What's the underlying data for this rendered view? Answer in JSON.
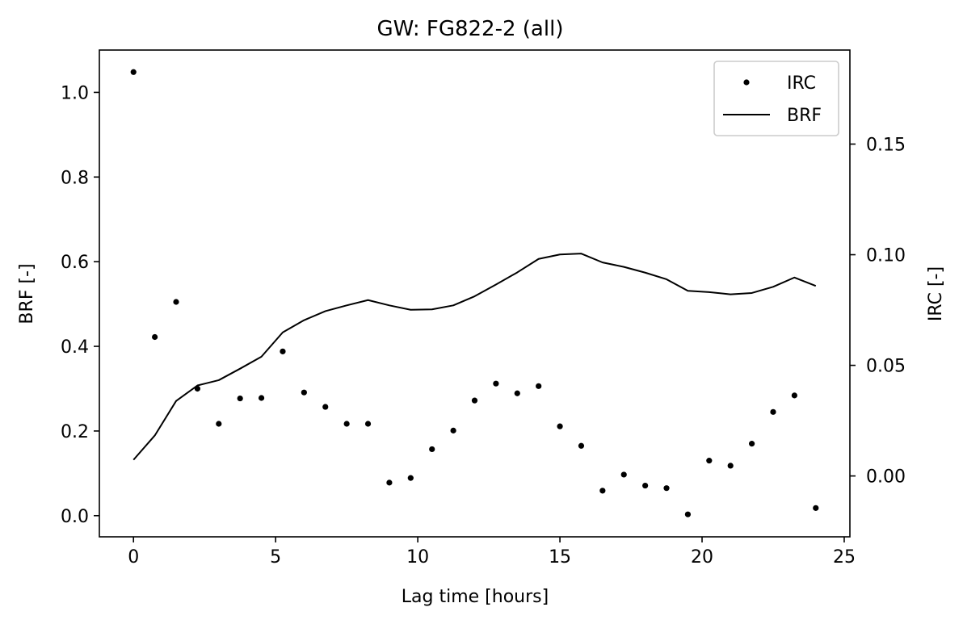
{
  "chart_data": {
    "type": "scatter",
    "title": "GW: FG822-2 (all)",
    "xlabel": "Lag time [hours]",
    "ylabel": "BRF [-]",
    "y2label": "IRC [-]",
    "xlim": [
      -1.2,
      25.2
    ],
    "ylim": [
      -0.05,
      1.1
    ],
    "y2lim": [
      -0.0275,
      0.1925
    ],
    "xticks": [
      0,
      5,
      10,
      15,
      20,
      25
    ],
    "yticks": [
      0.0,
      0.2,
      0.4,
      0.6,
      0.8,
      1.0
    ],
    "y2ticks": [
      0.0,
      0.05,
      0.1,
      0.15
    ],
    "xtick_labels": [
      "0",
      "5",
      "10",
      "15",
      "20",
      "25"
    ],
    "ytick_labels": [
      "0.0",
      "0.2",
      "0.4",
      "0.6",
      "0.8",
      "1.0"
    ],
    "y2tick_labels": [
      "0.00",
      "0.05",
      "0.10",
      "0.15"
    ],
    "grid": false,
    "legend_position": "top-right",
    "series": [
      {
        "name": "IRC",
        "style": "points",
        "axis": "left",
        "color": "#000000",
        "x": [
          0,
          0.75,
          1.5,
          2.25,
          3,
          3.75,
          4.5,
          5.25,
          6,
          6.75,
          7.5,
          8.25,
          9,
          9.75,
          10.5,
          11.25,
          12,
          12.75,
          13.5,
          14.25,
          15,
          15.75,
          16.5,
          17.25,
          18,
          18.75,
          19.5,
          20.25,
          21,
          21.75,
          22.5,
          23.25,
          24
        ],
        "y": [
          1.048,
          0.422,
          0.505,
          0.3,
          0.217,
          0.277,
          0.278,
          0.388,
          0.291,
          0.257,
          0.217,
          0.217,
          0.078,
          0.089,
          0.157,
          0.201,
          0.272,
          0.312,
          0.289,
          0.306,
          0.211,
          0.165,
          0.059,
          0.097,
          0.071,
          0.065,
          0.003,
          0.13,
          0.118,
          0.17,
          0.245,
          0.284,
          0.018
        ]
      },
      {
        "name": "BRF",
        "style": "line",
        "axis": "right",
        "color": "#000000",
        "x": [
          0,
          0.75,
          1.5,
          2.25,
          3,
          3.75,
          4.5,
          5.25,
          6,
          6.75,
          7.5,
          8.25,
          9,
          9.75,
          10.5,
          11.25,
          12,
          12.75,
          13.5,
          14.25,
          15,
          15.75,
          16.5,
          17.25,
          18,
          18.75,
          19.5,
          20.25,
          21,
          21.75,
          22.5,
          23.25,
          24
        ],
        "y": [
          0.0073,
          0.0183,
          0.0339,
          0.0409,
          0.0433,
          0.0485,
          0.0539,
          0.0649,
          0.0704,
          0.0745,
          0.0771,
          0.0795,
          0.0771,
          0.0751,
          0.0753,
          0.0771,
          0.0812,
          0.0865,
          0.092,
          0.0981,
          0.1001,
          0.1005,
          0.0965,
          0.0945,
          0.0919,
          0.0889,
          0.0837,
          0.0831,
          0.0821,
          0.0827,
          0.0855,
          0.0897,
          0.0859
        ]
      }
    ]
  }
}
